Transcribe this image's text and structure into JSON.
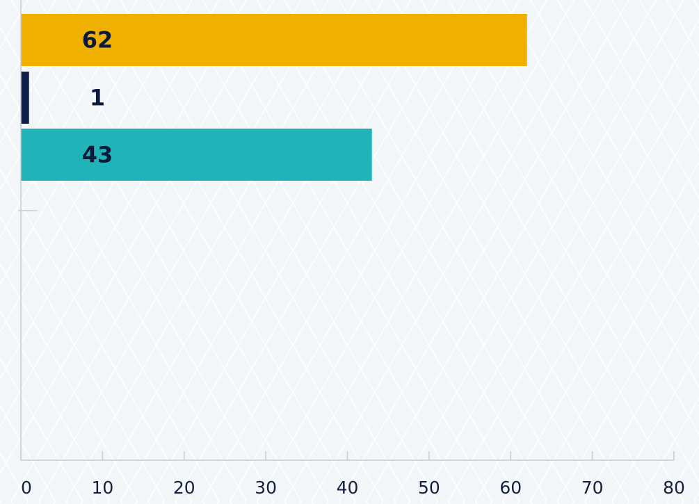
{
  "chart_data": {
    "type": "bar",
    "orientation": "horizontal",
    "title": "",
    "xlabel": "",
    "ylabel": "",
    "categories": [
      "",
      "",
      ""
    ],
    "values": [
      62,
      1,
      43
    ],
    "colors": [
      "#f0b000",
      "#0d1f4a",
      "#20b3b8"
    ],
    "data_labels": [
      "62",
      "1",
      "43"
    ],
    "xlim": [
      0,
      80
    ],
    "x_ticks": [
      0,
      10,
      20,
      30,
      40,
      50,
      60,
      70,
      80
    ],
    "x_tick_labels": [
      "0",
      "10",
      "20",
      "30",
      "40",
      "50",
      "60",
      "70",
      "80"
    ],
    "grid": false,
    "legend": "none",
    "axis_color": "#c4ccd6"
  }
}
